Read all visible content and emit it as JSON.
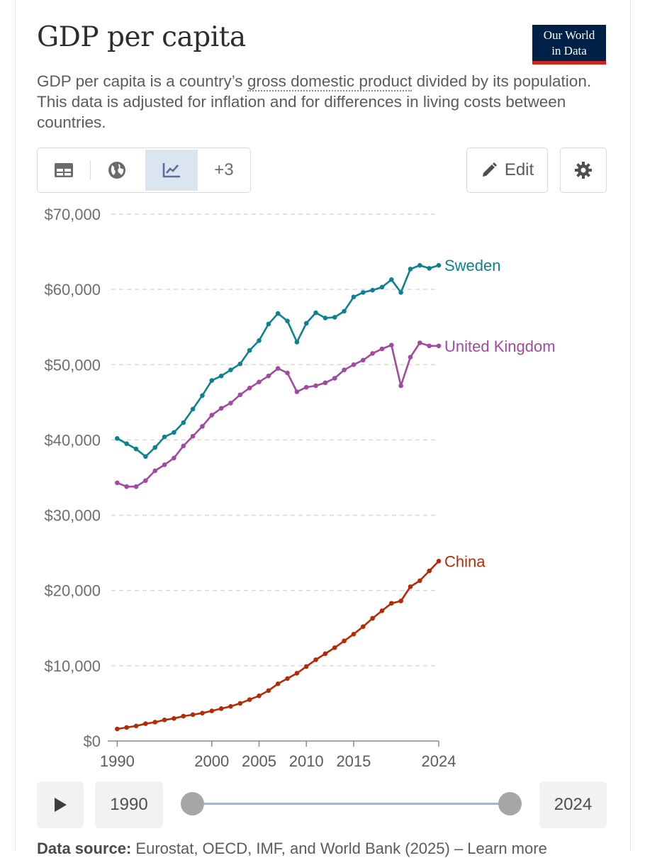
{
  "header": {
    "title": "GDP per capita",
    "logo_line1": "Our World",
    "logo_line2": "in Data",
    "subtitle_pre": "GDP per capita is a country’s ",
    "subtitle_link": "gross domestic product",
    "subtitle_post": " divided by its population. This data is adjusted for inflation and for differences in living costs between countries."
  },
  "toolbar": {
    "tabs": [
      {
        "icon": "table-icon"
      },
      {
        "icon": "globe-icon"
      },
      {
        "icon": "line-chart-icon",
        "active": true
      },
      {
        "label": "+3"
      }
    ],
    "edit_label": "Edit",
    "settings_icon": "gear-icon"
  },
  "colors": {
    "Sweden": "#0d8190",
    "United Kingdom": "#a14aa1",
    "China": "#b42b08"
  },
  "chart_data": {
    "type": "line",
    "title": "GDP per capita",
    "xlabel": "",
    "ylabel": "",
    "xlim": [
      1989,
      2024
    ],
    "ylim": [
      0,
      70000
    ],
    "y_ticks": [
      0,
      10000,
      20000,
      30000,
      40000,
      50000,
      60000,
      70000
    ],
    "y_tick_labels": [
      "$0",
      "$10,000",
      "$20,000",
      "$30,000",
      "$40,000",
      "$50,000",
      "$60,000",
      "$70,000"
    ],
    "x_tick_labels": [
      "1990",
      "2000",
      "2005",
      "2010",
      "2015",
      "2024"
    ],
    "x_ticks": [
      1990,
      2000,
      2005,
      2010,
      2015,
      2024
    ],
    "x": [
      1990,
      1991,
      1992,
      1993,
      1994,
      1995,
      1996,
      1997,
      1998,
      1999,
      2000,
      2001,
      2002,
      2003,
      2004,
      2005,
      2006,
      2007,
      2008,
      2009,
      2010,
      2011,
      2012,
      2013,
      2014,
      2015,
      2016,
      2017,
      2018,
      2019,
      2020,
      2021,
      2022,
      2023,
      2024
    ],
    "series": [
      {
        "name": "Sweden",
        "values": [
          40200,
          39500,
          38800,
          37800,
          39000,
          40400,
          41000,
          42300,
          44100,
          45900,
          47900,
          48500,
          49300,
          50100,
          51900,
          53200,
          55400,
          56800,
          55800,
          53000,
          55500,
          56900,
          56200,
          56300,
          57100,
          59000,
          59600,
          59900,
          60300,
          61300,
          59600,
          62700,
          63200,
          62800,
          63200
        ]
      },
      {
        "name": "United Kingdom",
        "values": [
          34300,
          33800,
          33800,
          34600,
          35900,
          36700,
          37600,
          39200,
          40500,
          41800,
          43300,
          44200,
          44900,
          46000,
          46900,
          47700,
          48500,
          49500,
          48900,
          46400,
          47000,
          47200,
          47600,
          48200,
          49300,
          50000,
          50600,
          51500,
          52100,
          52600,
          47200,
          51000,
          52900,
          52500,
          52500
        ]
      },
      {
        "name": "China",
        "values": [
          1600,
          1800,
          2000,
          2300,
          2500,
          2800,
          3000,
          3300,
          3500,
          3700,
          4000,
          4300,
          4600,
          5000,
          5500,
          6000,
          6700,
          7600,
          8300,
          9000,
          9900,
          10800,
          11600,
          12400,
          13300,
          14200,
          15200,
          16300,
          17300,
          18300,
          18600,
          20500,
          21300,
          22600,
          23900
        ]
      }
    ]
  },
  "timeline": {
    "start_year": "1990",
    "end_year": "2024",
    "play_icon": "play-icon"
  },
  "footer": {
    "source_label": "Data source:",
    "source_text": "Eurostat, OECD, IMF, and World Bank (2025) – Learn more"
  }
}
